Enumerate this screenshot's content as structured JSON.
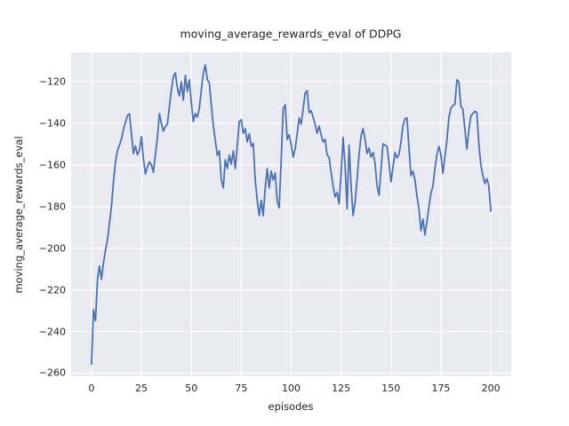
{
  "figure": {
    "background": "#ffffff"
  },
  "chart_data": {
    "type": "line",
    "title": "moving_average_rewards_eval of DDPG",
    "xlabel": "episodes",
    "ylabel": "moving_average_rewards_eval",
    "x_ticks": [
      0,
      25,
      50,
      75,
      100,
      125,
      150,
      175,
      200
    ],
    "y_ticks": [
      -120,
      -140,
      -160,
      -180,
      -200,
      -220,
      -240,
      -260
    ],
    "xlim": [
      -10.2,
      210.2
    ],
    "ylim": [
      -261.5,
      -105.9
    ],
    "grid": true,
    "legend": "none",
    "plot_bg": "#eaeaf2",
    "grid_color": "#ffffff",
    "line_color": "#4c72b0",
    "text_color": "#262626",
    "series": [
      {
        "name": "moving_average_rewards_eval",
        "x_start": 0,
        "x_step": 1,
        "values": [
          -255.7,
          -229.5,
          -234.8,
          -215,
          -208.5,
          -214.9,
          -207,
          -201,
          -196,
          -188,
          -180,
          -168,
          -158.5,
          -153,
          -150.5,
          -147.5,
          -143,
          -139.5,
          -136.3,
          -135.4,
          -145,
          -154.5,
          -150.8,
          -155.1,
          -153,
          -146.4,
          -157,
          -164.3,
          -161,
          -158.5,
          -160,
          -163.5,
          -155,
          -147,
          -135.3,
          -140,
          -143.8,
          -141.5,
          -140.4,
          -132,
          -124,
          -117.5,
          -115.7,
          -123,
          -126.8,
          -120,
          -128.9,
          -117,
          -124.7,
          -119.1,
          -130,
          -139.1,
          -135.3,
          -137,
          -132.8,
          -124,
          -116,
          -111.9,
          -119,
          -120.5,
          -131,
          -141,
          -148.1,
          -155.3,
          -153.2,
          -167,
          -171,
          -157.5,
          -161.7,
          -155.3,
          -159.6,
          -153.2,
          -161.7,
          -151,
          -139.1,
          -138.3,
          -144.7,
          -142.6,
          -148.9,
          -145,
          -151,
          -149.6,
          -167.2,
          -177,
          -184.3,
          -177,
          -184.3,
          -171,
          -161.7,
          -171,
          -163,
          -167.2,
          -163.8,
          -177.4,
          -180.5,
          -158,
          -133,
          -131.1,
          -147.7,
          -145.5,
          -150.2,
          -156.2,
          -152.3,
          -145,
          -137.4,
          -140.4,
          -133,
          -125.5,
          -124.3,
          -134.9,
          -134,
          -137,
          -140.5,
          -144.7,
          -141.3,
          -145.5,
          -148.9,
          -147.7,
          -155.3,
          -156.2,
          -163.5,
          -170.2,
          -175.3,
          -173.2,
          -178.7,
          -164,
          -146.8,
          -160,
          -181,
          -150.5,
          -170,
          -184.3,
          -178,
          -167,
          -155,
          -146,
          -142.6,
          -147.5,
          -154.5,
          -151.9,
          -156.2,
          -154,
          -159,
          -170,
          -174.5,
          -162,
          -149.8,
          -150.5,
          -151.1,
          -159,
          -168.1,
          -161,
          -154,
          -156.6,
          -154.9,
          -149,
          -141,
          -137.8,
          -137.4,
          -152,
          -165.1,
          -163,
          -167.2,
          -175,
          -181,
          -191.5,
          -186,
          -193.6,
          -187,
          -180,
          -173.5,
          -170.2,
          -161.7,
          -155,
          -151.1,
          -155,
          -164,
          -156,
          -148.1,
          -137,
          -132.8,
          -131.5,
          -130.8,
          -119.1,
          -120.2,
          -131.9,
          -133.2,
          -143,
          -152.3,
          -143,
          -136.5,
          -135.3,
          -134.2,
          -134.9,
          -150,
          -160,
          -165.1,
          -168.9,
          -166.5,
          -170.2,
          -182.1
        ]
      }
    ]
  }
}
